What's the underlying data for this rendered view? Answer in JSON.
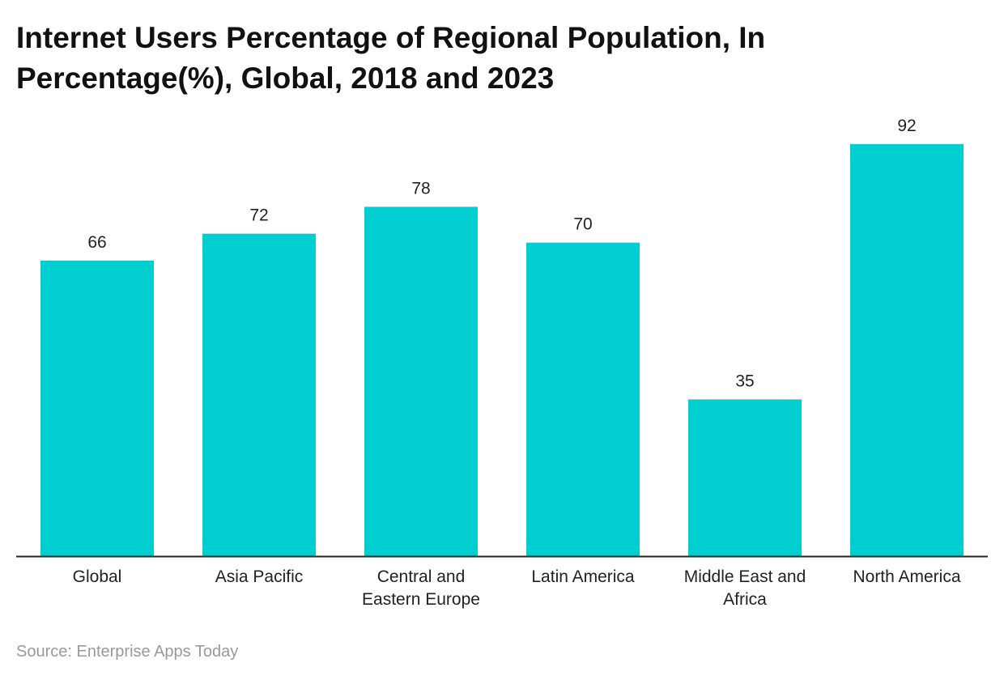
{
  "chart_data": {
    "type": "bar",
    "title": "Internet Users Percentage of Regional Population, In Percentage(%), Global, 2018 and 2023",
    "categories": [
      [
        "Global"
      ],
      [
        "Asia Pacific"
      ],
      [
        "Central and",
        "Eastern Europe"
      ],
      [
        "Latin America"
      ],
      [
        "Middle East and",
        "Africa"
      ],
      [
        "North America"
      ]
    ],
    "values": [
      66,
      72,
      78,
      70,
      35,
      92
    ],
    "ylim": [
      0,
      92
    ],
    "grid": false,
    "legend": "none",
    "bar_color": "#00ced1",
    "axis_color": "#222222"
  },
  "source": "Source: Enterprise Apps Today"
}
